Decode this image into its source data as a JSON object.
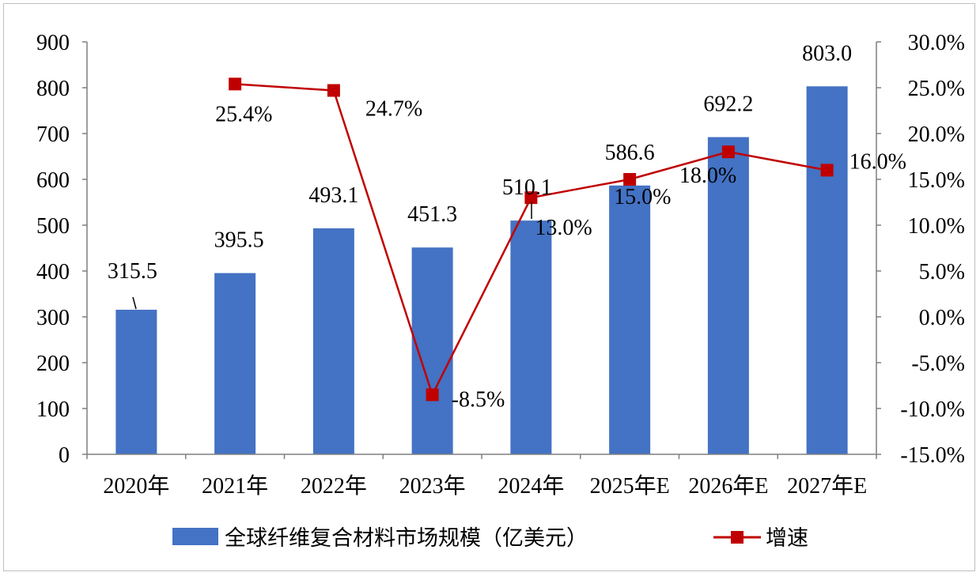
{
  "chart_data": {
    "type": "bar+line",
    "categories": [
      "2020年",
      "2021年",
      "2022年",
      "2023年",
      "2024年",
      "2025年E",
      "2026年E",
      "2027年E"
    ],
    "series": [
      {
        "name": "全球纤维复合材料市场规模（亿美元）",
        "type": "bar",
        "axis": "left",
        "color": "#4472c4",
        "values": [
          315.5,
          395.5,
          493.1,
          451.3,
          510.1,
          586.6,
          692.2,
          803.0
        ],
        "labels": [
          "315.5",
          "395.5",
          "493.1",
          "451.3",
          "510.1",
          "586.6",
          "692.2",
          "803.0"
        ]
      },
      {
        "name": "增速",
        "type": "line",
        "axis": "right",
        "color": "#c00000",
        "marker": "square",
        "values": [
          null,
          25.4,
          24.7,
          -8.5,
          13.0,
          15.0,
          18.0,
          16.0
        ],
        "labels": [
          "",
          "25.4%",
          "24.7%",
          "-8.5%",
          "13.0%",
          "15.0%",
          "18.0%",
          "16.0%"
        ]
      }
    ],
    "y_left": {
      "min": 0,
      "max": 900,
      "ticks": [
        "0",
        "100",
        "200",
        "300",
        "400",
        "500",
        "600",
        "700",
        "800",
        "900"
      ]
    },
    "y_right": {
      "min": -15,
      "max": 30,
      "ticks": [
        "-15.0%",
        "-10.0%",
        "-5.0%",
        "0.0%",
        "5.0%",
        "10.0%",
        "15.0%",
        "20.0%",
        "25.0%",
        "30.0%"
      ]
    },
    "grid": false,
    "legend": "bottom"
  }
}
